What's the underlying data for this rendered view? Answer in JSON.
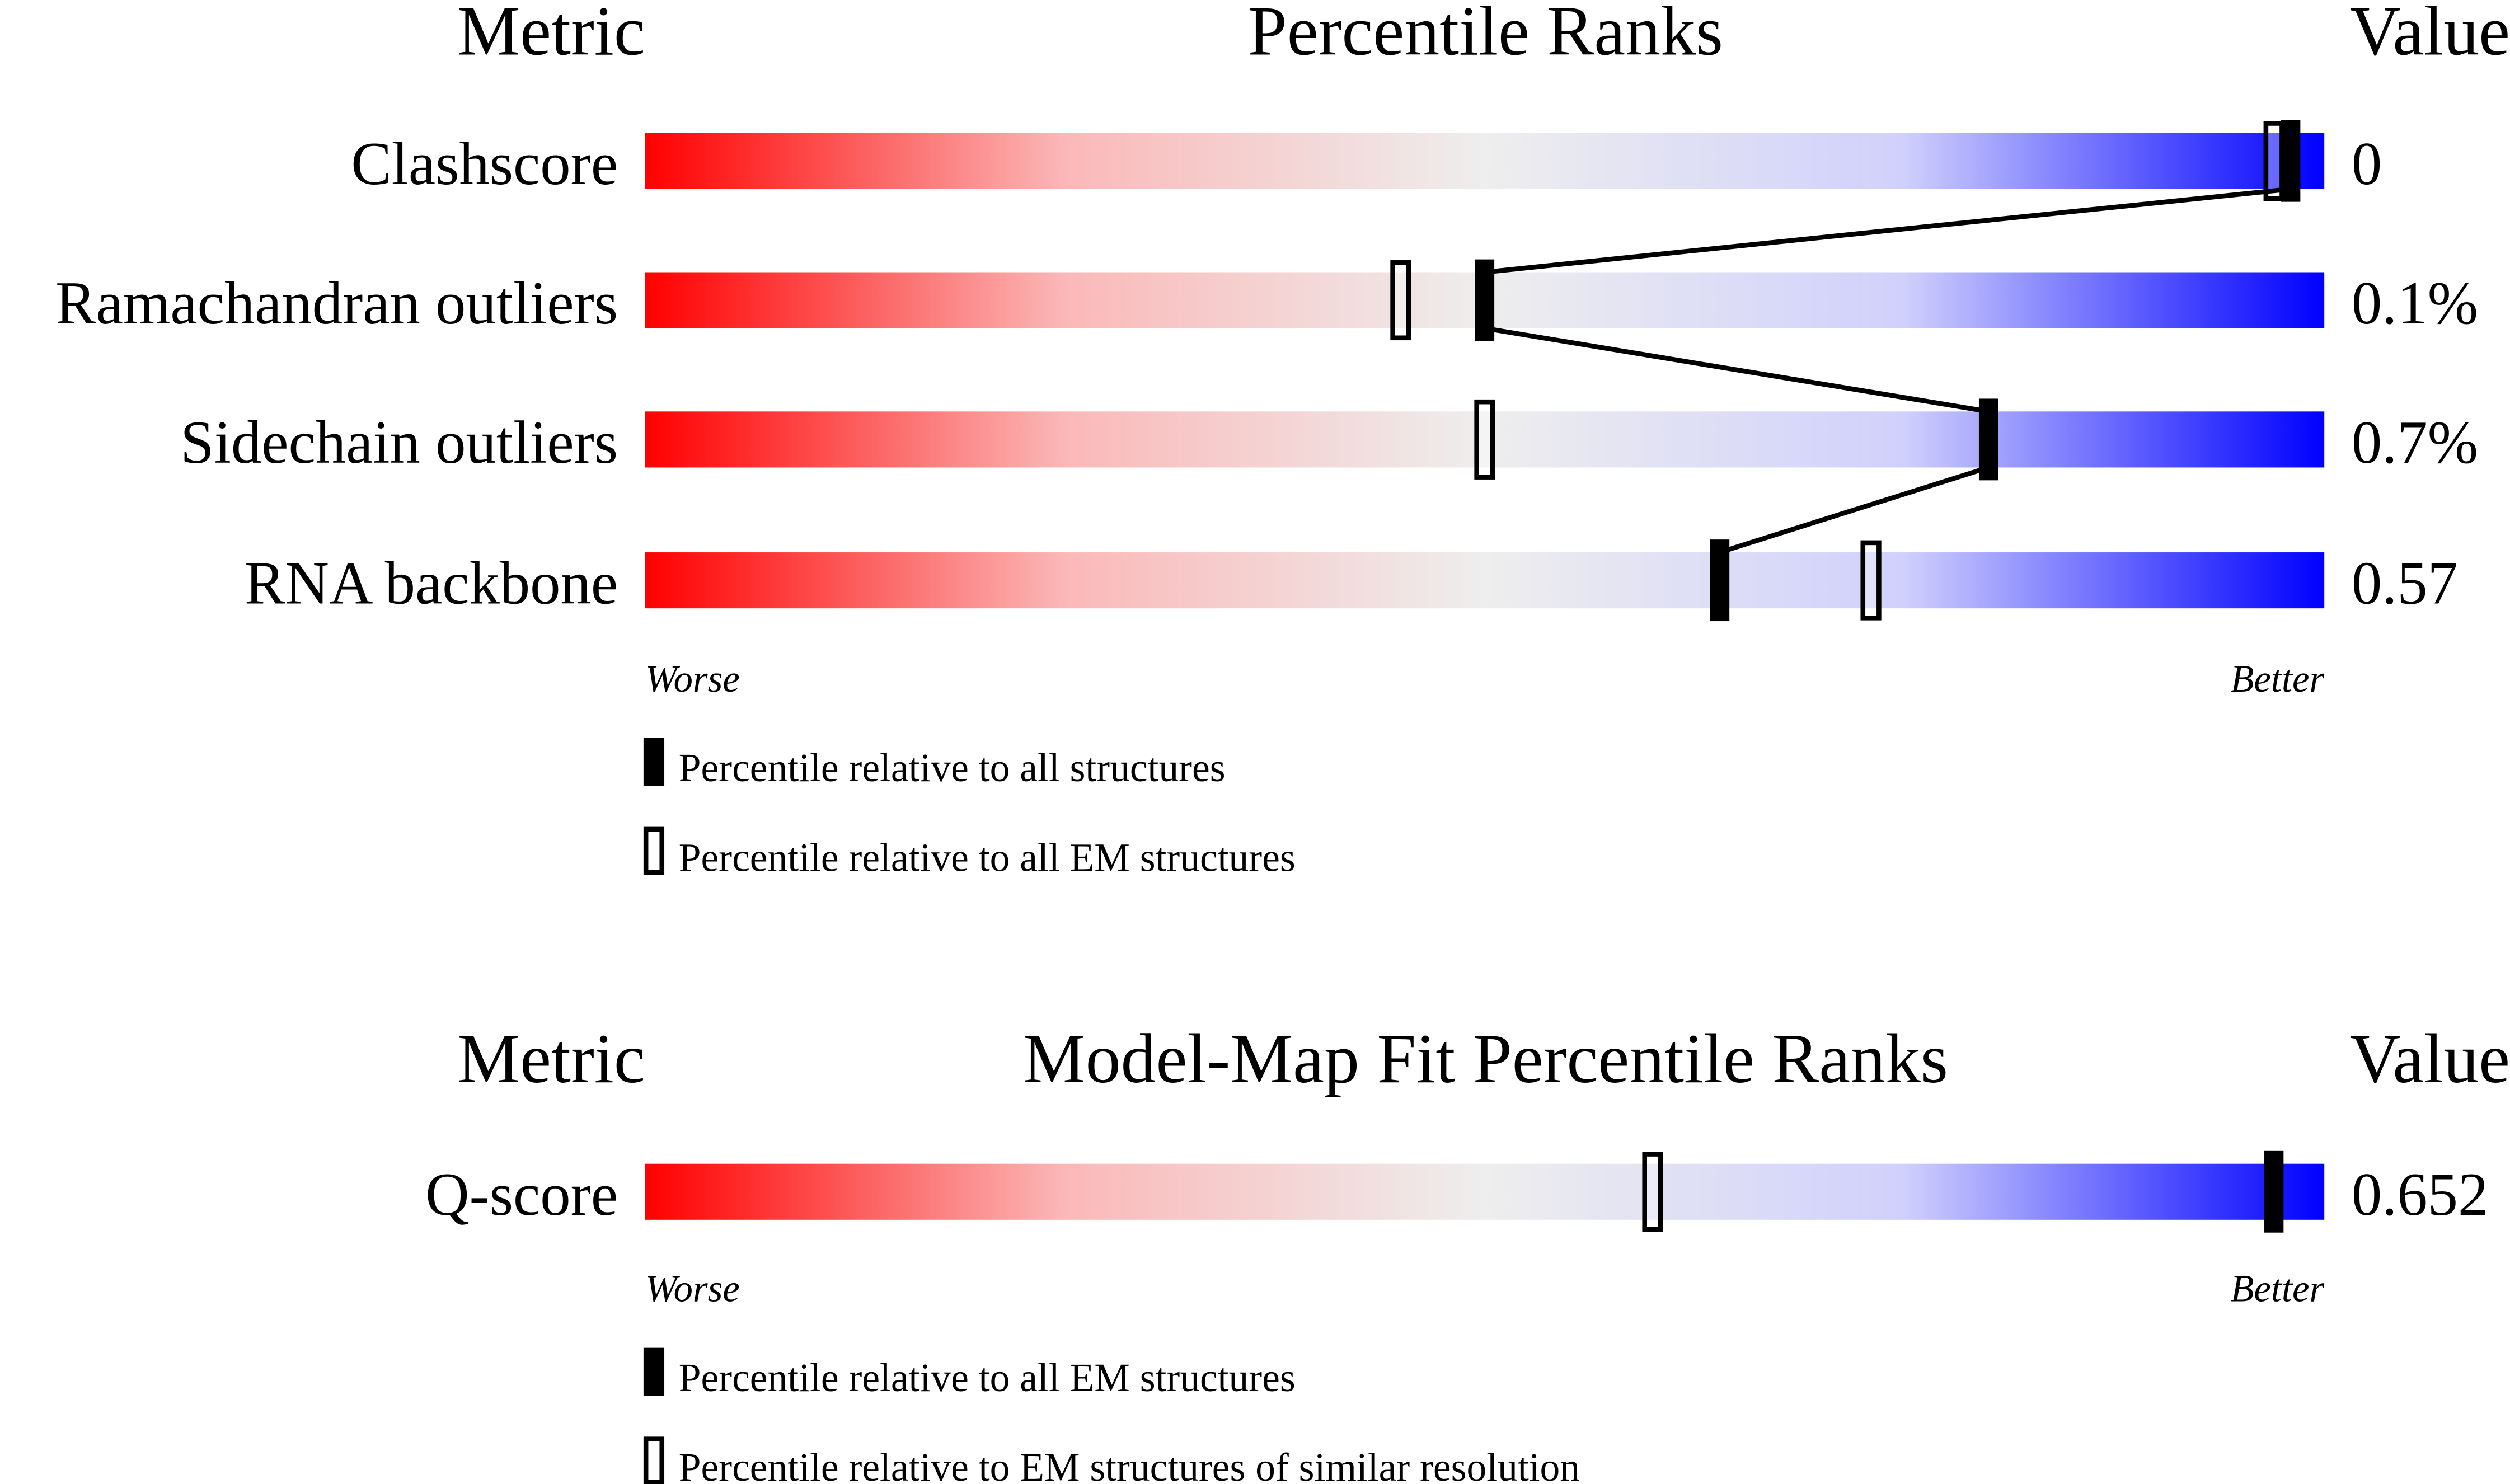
{
  "chart_data": [
    {
      "type": "table",
      "headers": {
        "metric": "Metric",
        "title": "Percentile Ranks",
        "value": "Value"
      },
      "rows": [
        {
          "metric": "Clashscore",
          "value": "0",
          "percentile_all": 98,
          "percentile_em": 97
        },
        {
          "metric": "Ramachandran outliers",
          "value": "0.1%",
          "percentile_all": 50,
          "percentile_em": 45
        },
        {
          "metric": "Sidechain outliers",
          "value": "0.7%",
          "percentile_all": 80,
          "percentile_em": 50
        },
        {
          "metric": "RNA backbone",
          "value": "0.57",
          "percentile_all": 64,
          "percentile_em": 73
        }
      ],
      "axis": {
        "worse": "Worse",
        "better": "Better",
        "range": [
          0,
          100
        ]
      },
      "legend": {
        "filled": "Percentile relative to all structures",
        "open": "Percentile relative to all EM structures"
      }
    },
    {
      "type": "table",
      "headers": {
        "metric": "Metric",
        "title": "Model-Map Fit Percentile Ranks",
        "value": "Value"
      },
      "rows": [
        {
          "metric": "Q-score",
          "value": "0.652",
          "percentile_all": 97,
          "percentile_em": 60
        }
      ],
      "axis": {
        "worse": "Worse",
        "better": "Better",
        "range": [
          0,
          100
        ]
      },
      "legend": {
        "filled": "Percentile relative to all EM structures",
        "open": "Percentile relative to EM structures of similar resolution"
      }
    }
  ],
  "colors": {
    "worse": "#ff0000",
    "middle": "#eeeeee",
    "better": "#0000ff",
    "marker": "#000000"
  }
}
